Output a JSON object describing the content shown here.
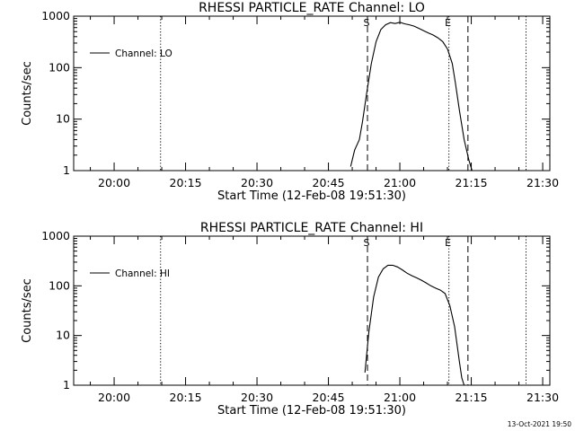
{
  "timestamp": "13-Oct-2021 19:50",
  "chart_data": [
    {
      "type": "line",
      "title": "RHESSI PARTICLE_RATE Channel: LO",
      "xlabel": "Start Time (12-Feb-08 19:51:30)",
      "ylabel": "Counts/sec",
      "yscale": "log",
      "ylim": [
        1,
        1000
      ],
      "yticks": [
        {
          "v": 1,
          "label": "1"
        },
        {
          "v": 10,
          "label": "10"
        },
        {
          "v": 100,
          "label": "100"
        },
        {
          "v": 1000,
          "label": "1000"
        }
      ],
      "xlim": [
        "19:51:30",
        "21:31:30"
      ],
      "xticks": [
        "20:00",
        "20:15",
        "20:30",
        "20:45",
        "21:00",
        "21:15",
        "21:30"
      ],
      "grid": false,
      "legend": "top-left",
      "series": [
        {
          "name": "Channel: LO",
          "x": [
            "20:49:40",
            "20:50:30",
            "20:51:30",
            "20:52:10",
            "20:53:00",
            "20:54:00",
            "20:55:00",
            "20:56:00",
            "20:57:00",
            "20:58:00",
            "20:59:00",
            "21:00:00",
            "21:01:00",
            "21:02:00",
            "21:03:00",
            "21:04:00",
            "21:05:00",
            "21:06:00",
            "21:07:00",
            "21:08:00",
            "21:09:00",
            "21:10:00",
            "21:11:00",
            "21:11:40",
            "21:12:30",
            "21:13:30",
            "21:14:30",
            "21:15:10"
          ],
          "y": [
            1.2,
            2.5,
            4,
            9,
            30,
            120,
            320,
            550,
            680,
            750,
            720,
            760,
            710,
            680,
            640,
            580,
            520,
            470,
            430,
            380,
            320,
            230,
            120,
            50,
            15,
            4,
            1.6,
            1
          ]
        }
      ],
      "vlines": [
        {
          "x": "20:09:45",
          "style": "dotted",
          "label": ""
        },
        {
          "x": "20:53:12",
          "style": "dashed",
          "label": "S"
        },
        {
          "x": "21:10:18",
          "style": "dotted",
          "label": "E"
        },
        {
          "x": "21:14:18",
          "style": "dashed",
          "label": ""
        },
        {
          "x": "21:26:30",
          "style": "dotted",
          "label": ""
        }
      ]
    },
    {
      "type": "line",
      "title": "RHESSI PARTICLE_RATE Channel: HI",
      "xlabel": "Start Time (12-Feb-08 19:51:30)",
      "ylabel": "Counts/sec",
      "yscale": "log",
      "ylim": [
        1,
        1000
      ],
      "yticks": [
        {
          "v": 1,
          "label": "1"
        },
        {
          "v": 10,
          "label": "10"
        },
        {
          "v": 100,
          "label": "100"
        },
        {
          "v": 1000,
          "label": "1000"
        }
      ],
      "xlim": [
        "19:51:30",
        "21:31:30"
      ],
      "xticks": [
        "20:00",
        "20:15",
        "20:30",
        "20:45",
        "21:00",
        "21:15",
        "21:30"
      ],
      "grid": false,
      "legend": "top-left",
      "series": [
        {
          "name": "Channel: HI",
          "x": [
            "20:52:40",
            "20:53:30",
            "20:54:30",
            "20:55:30",
            "20:56:30",
            "20:57:30",
            "20:58:30",
            "20:59:30",
            "21:00:30",
            "21:01:30",
            "21:02:30",
            "21:03:30",
            "21:04:30",
            "21:05:30",
            "21:06:30",
            "21:07:30",
            "21:08:30",
            "21:09:30",
            "21:10:30",
            "21:11:30",
            "21:12:30",
            "21:13:00",
            "21:13:30"
          ],
          "y": [
            1.8,
            12,
            60,
            150,
            220,
            260,
            260,
            240,
            210,
            180,
            160,
            145,
            130,
            115,
            100,
            90,
            82,
            70,
            40,
            15,
            3,
            1.4,
            1
          ]
        }
      ],
      "vlines": [
        {
          "x": "20:09:45",
          "style": "dotted",
          "label": ""
        },
        {
          "x": "20:53:12",
          "style": "dashed",
          "label": "S"
        },
        {
          "x": "21:10:18",
          "style": "dotted",
          "label": "E"
        },
        {
          "x": "21:14:18",
          "style": "dashed",
          "label": ""
        },
        {
          "x": "21:26:30",
          "style": "dotted",
          "label": ""
        }
      ]
    }
  ]
}
